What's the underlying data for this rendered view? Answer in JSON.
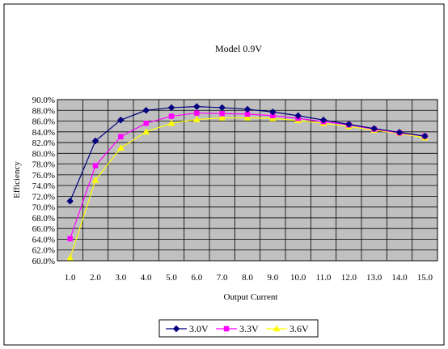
{
  "chart_data": {
    "type": "line",
    "title": "Model 0.9V",
    "xlabel": "Output Current",
    "ylabel": "Efficiency",
    "x": [
      1,
      2,
      3,
      4,
      5,
      6,
      7,
      8,
      9,
      10,
      11,
      12,
      13,
      14,
      15
    ],
    "x_tick_labels": [
      "1.0",
      "2.0",
      "3.0",
      "4.0",
      "5.0",
      "6.0",
      "7.0",
      "8.0",
      "9.0",
      "10.0",
      "11.0",
      "12.0",
      "13.0",
      "14.0",
      "15.0"
    ],
    "ylim": [
      0.6,
      0.9
    ],
    "y_tick_labels": [
      "90.0%",
      "88.0%",
      "86.0%",
      "84.0%",
      "82.0%",
      "80.0%",
      "78.0%",
      "76.0%",
      "74.0%",
      "72.0%",
      "70.0%",
      "68.0%",
      "66.0%",
      "64.0%",
      "62.0%",
      "60.0%"
    ],
    "grid": true,
    "legend_position": "bottom",
    "plot_background": "#c0c0c0",
    "series": [
      {
        "name": "3.0V",
        "color": "#000080",
        "marker": "diamond",
        "values": [
          0.711,
          0.823,
          0.862,
          0.88,
          0.885,
          0.887,
          0.885,
          0.882,
          0.877,
          0.87,
          0.862,
          0.854,
          0.846,
          0.839,
          0.832
        ]
      },
      {
        "name": "3.3V",
        "color": "#ff00ff",
        "marker": "square",
        "values": [
          0.641,
          0.777,
          0.831,
          0.856,
          0.869,
          0.875,
          0.874,
          0.873,
          0.87,
          0.865,
          0.859,
          0.853,
          0.845,
          0.838,
          0.832
        ]
      },
      {
        "name": "3.6V",
        "color": "#ffff00",
        "marker": "triangle",
        "values": [
          0.605,
          0.75,
          0.81,
          0.84,
          0.856,
          0.863,
          0.866,
          0.866,
          0.865,
          0.861,
          0.856,
          0.85,
          0.843,
          0.837,
          0.829
        ]
      }
    ]
  }
}
